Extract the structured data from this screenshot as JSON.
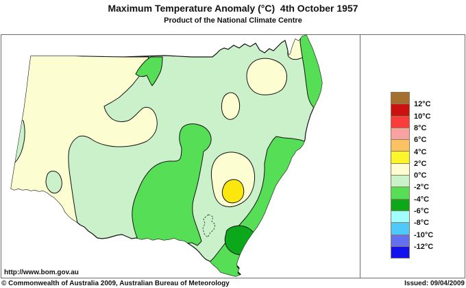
{
  "title": "Maximum Temperature Anomaly (°C)  4th October 1957",
  "subtitle": "Product of the National Climate Centre",
  "footer": {
    "url": "http://www.bom.gov.au",
    "copyright": "© Commonwealth of Australia 2009, Australian Bureau of Meteorology",
    "issued": "Issued: 09/04/2009"
  },
  "legend": {
    "labels": [
      "12°C",
      "10°C",
      "8°C",
      "6°C",
      "4°C",
      "2°C",
      "0°C",
      "-2°C",
      "-4°C",
      "-6°C",
      "-8°C",
      "-10°C",
      "-12°C"
    ],
    "colors": [
      "#A5702F",
      "#CC1111",
      "#FA3C3C",
      "#F8A2A2",
      "#FBC264",
      "#FBF629",
      "#FDFDD2",
      "#CBF1CB",
      "#57DE57",
      "#0BA81B",
      "#A2FEFE",
      "#4EC9FB",
      "#6470F0",
      "#1212EE"
    ]
  },
  "map_data": {
    "type": "filled-contour-anomaly-map",
    "region_shown": "New South Wales",
    "anomaly_zones_depicted": [
      {
        "range_c": "2 to 4",
        "color": "#FBE70E",
        "where": "small oval in central-east interior"
      },
      {
        "range_c": "0 to 2",
        "color": "#FDFDD2",
        "where": "large west/northwest band along SA border, north-central blob, small north blob, patch on QLD border near coast, oval around the 2-4 core in central-east"
      },
      {
        "range_c": "-2 to 0",
        "color": "#CBF1CB",
        "where": "background over most of the state"
      },
      {
        "range_c": "-4 to -2",
        "color": "#57DE57",
        "where": "northeast coastal strip, small patch on QLD border, large south-central region, southeast coastal band to southern border"
      },
      {
        "range_c": "-6 to -4",
        "color": "#0BA81B",
        "where": "blob on the far south coast"
      }
    ]
  }
}
